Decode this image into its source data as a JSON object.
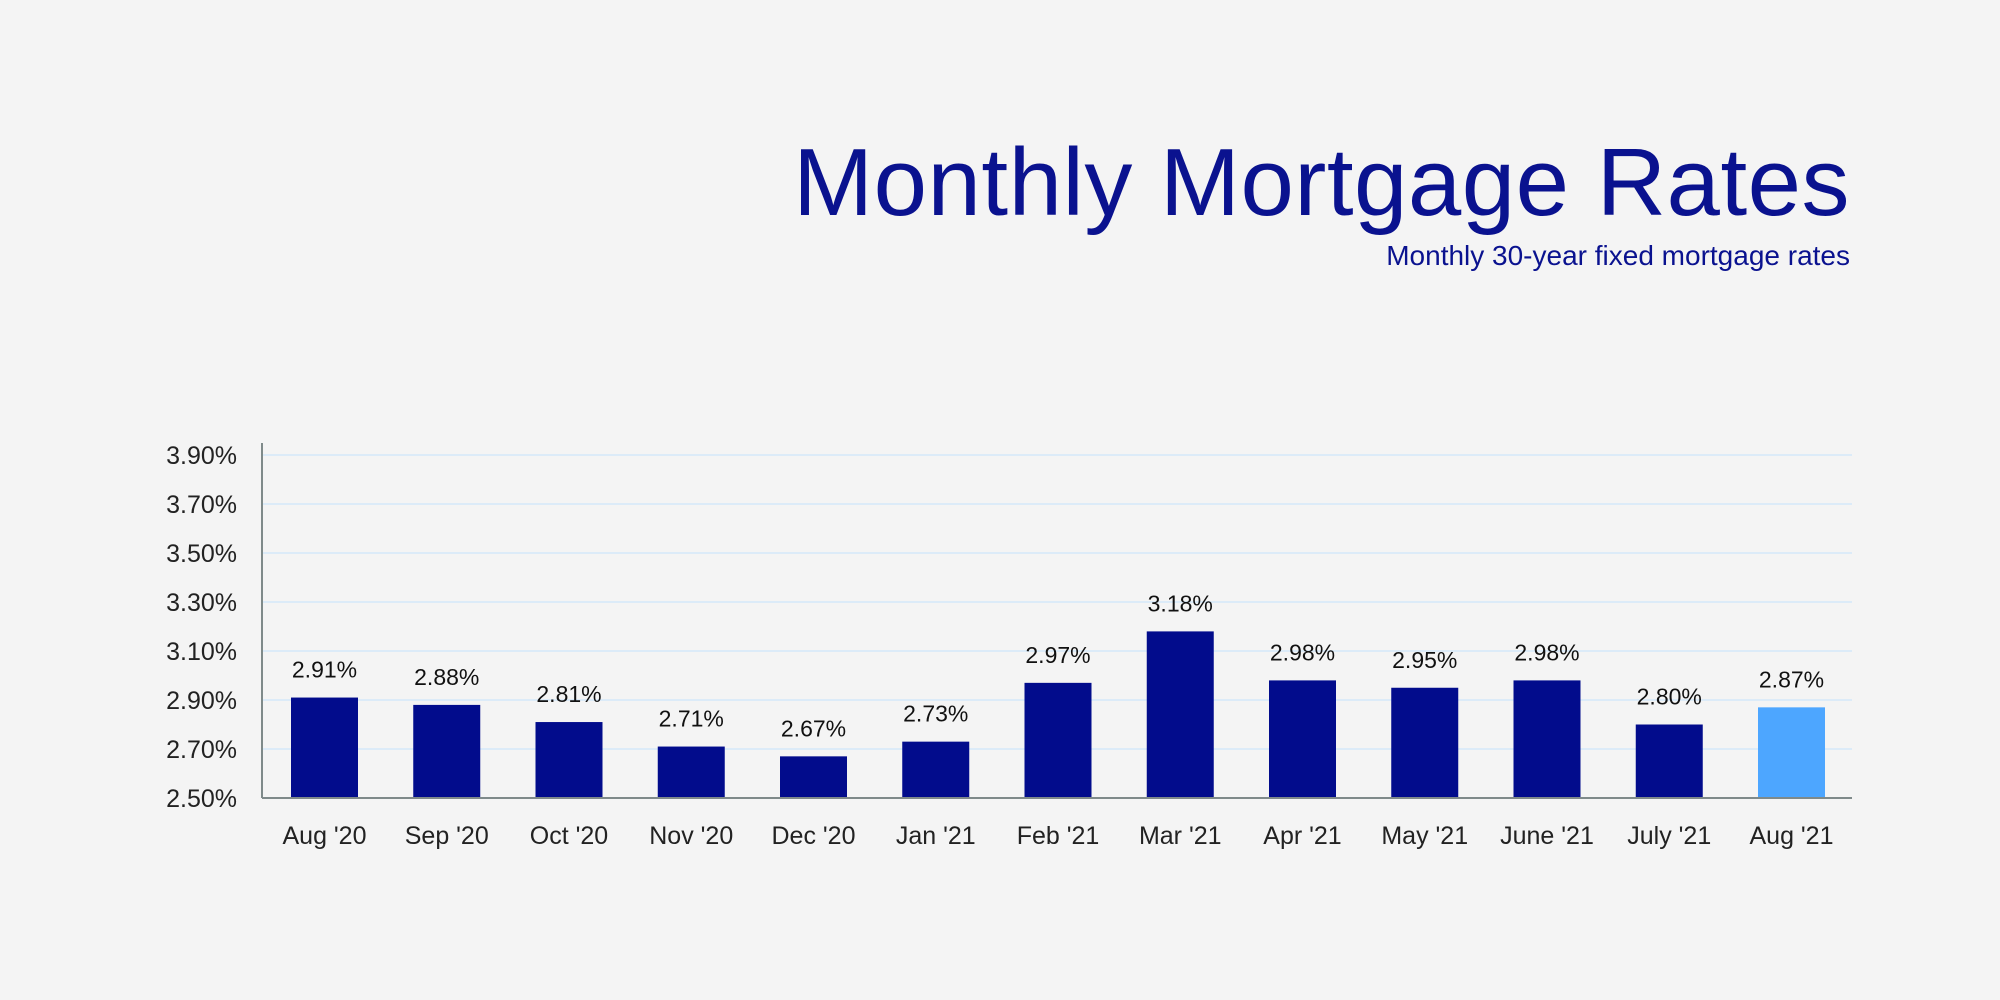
{
  "chart_data": {
    "type": "bar",
    "title": "Monthly Mortgage Rates",
    "subtitle": "Monthly 30-year fixed mortgage rates",
    "xlabel": "",
    "ylabel": "",
    "categories": [
      "Aug '20",
      "Sep '20",
      "Oct '20",
      "Nov '20",
      "Dec '20",
      "Jan '21",
      "Feb '21",
      "Mar '21",
      "Apr '21",
      "May '21",
      "June '21",
      "July '21",
      "Aug '21"
    ],
    "values": [
      2.91,
      2.88,
      2.81,
      2.71,
      2.67,
      2.73,
      2.97,
      3.18,
      2.98,
      2.95,
      2.98,
      2.8,
      2.87
    ],
    "data_labels": [
      "2.91%",
      "2.88%",
      "2.81%",
      "2.71%",
      "2.67%",
      "2.73%",
      "2.97%",
      "3.18%",
      "2.98%",
      "2.95%",
      "2.98%",
      "2.80%",
      "2.87%"
    ],
    "ylim": [
      2.5,
      3.9
    ],
    "yticks": [
      2.5,
      2.7,
      2.9,
      3.1,
      3.3,
      3.5,
      3.7,
      3.9
    ],
    "ytick_labels": [
      "2.50%",
      "2.70%",
      "2.90%",
      "3.10%",
      "3.30%",
      "3.50%",
      "3.70%",
      "3.90%"
    ],
    "grid": true,
    "legend": "none",
    "colors": {
      "bar": "#020c8c",
      "highlight_bar": "#4da6ff",
      "highlight_category": "Aug '21",
      "title": "#0a128f",
      "grid": "#dcebf8",
      "axis": "#7f8a8a"
    }
  }
}
